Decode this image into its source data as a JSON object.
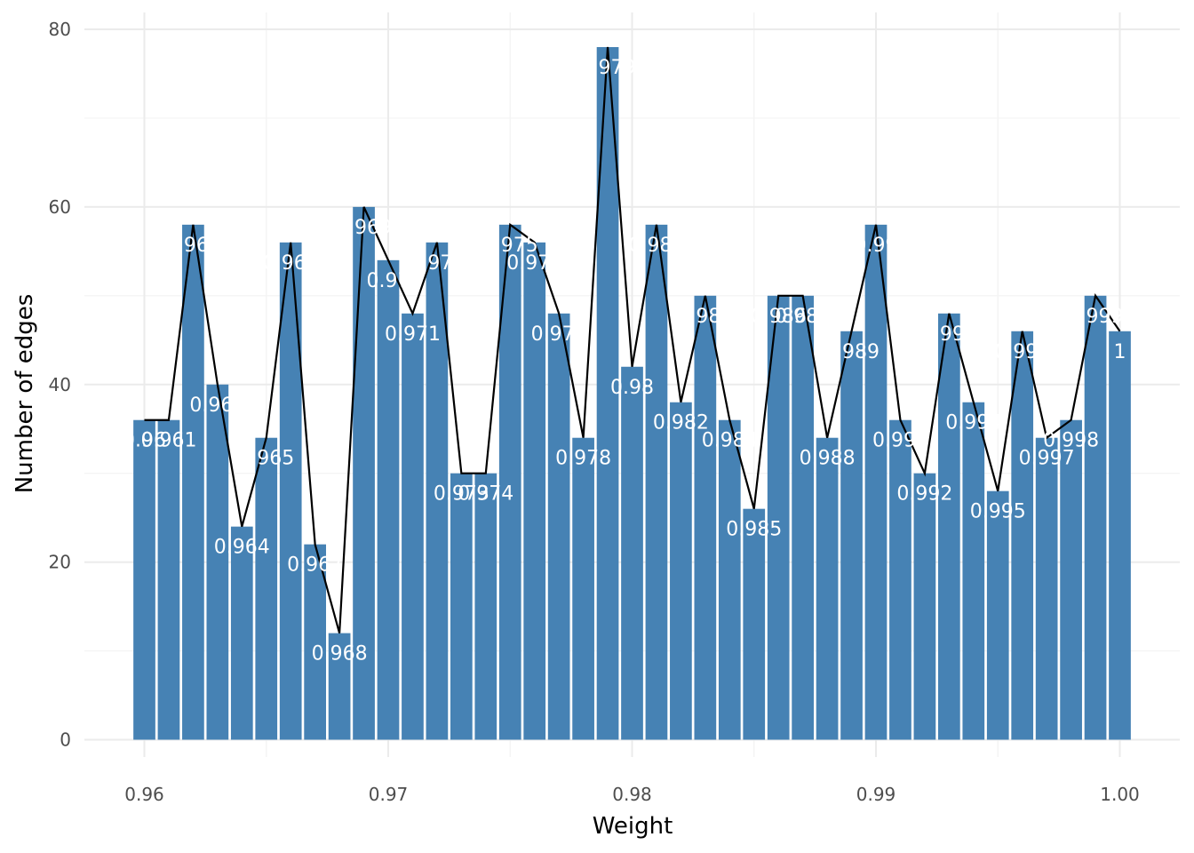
{
  "chart_data": {
    "type": "bar",
    "title": "",
    "xlabel": "Weight",
    "ylabel": "Number of edges",
    "xlim": [
      0.9575,
      1.002
    ],
    "ylim": [
      0,
      80
    ],
    "x_ticks": [
      0.96,
      0.97,
      0.98,
      0.99,
      1.0
    ],
    "x_tick_labels": [
      "0.96",
      "0.97",
      "0.98",
      "0.99",
      "1.00"
    ],
    "y_ticks": [
      0,
      20,
      40,
      60,
      80
    ],
    "y_tick_labels": [
      "0",
      "20",
      "40",
      "60",
      "80"
    ],
    "grid": true,
    "bar_color": "#4682B4",
    "line_color": "#000000",
    "label_color": "#ffffff",
    "x": [
      0.96,
      0.961,
      0.962,
      0.963,
      0.964,
      0.965,
      0.966,
      0.967,
      0.968,
      0.969,
      0.97,
      0.971,
      0.972,
      0.973,
      0.974,
      0.975,
      0.976,
      0.977,
      0.978,
      0.979,
      0.98,
      0.981,
      0.982,
      0.983,
      0.984,
      0.985,
      0.986,
      0.987,
      0.988,
      0.989,
      0.99,
      0.991,
      0.992,
      0.993,
      0.994,
      0.995,
      0.996,
      0.997,
      0.998,
      0.999,
      1.0
    ],
    "values": [
      36,
      36,
      58,
      40,
      24,
      34,
      56,
      22,
      12,
      60,
      54,
      48,
      56,
      30,
      30,
      58,
      56,
      48,
      34,
      78,
      42,
      58,
      38,
      50,
      36,
      26,
      50,
      50,
      34,
      46,
      58,
      36,
      30,
      48,
      38,
      28,
      46,
      34,
      36,
      50,
      46
    ],
    "labels": [
      "0.96",
      "0.961",
      "0.962",
      "0.963",
      "0.964",
      "0.965",
      "0.966",
      "0.967",
      "0.968",
      "0.969",
      "0.97",
      "0.971",
      "0.972",
      "0.973",
      "0.974",
      "0.975",
      "0.976",
      "0.977",
      "0.978",
      "0.979",
      "0.98",
      "0.981",
      "0.982",
      "0.983",
      "0.984",
      "0.985",
      "0.986",
      "0.987",
      "0.988",
      "0.989",
      "0.99",
      "0.991",
      "0.992",
      "0.993",
      "0.994",
      "0.995",
      "0.996",
      "0.997",
      "0.998",
      "0.999",
      "1"
    ]
  }
}
